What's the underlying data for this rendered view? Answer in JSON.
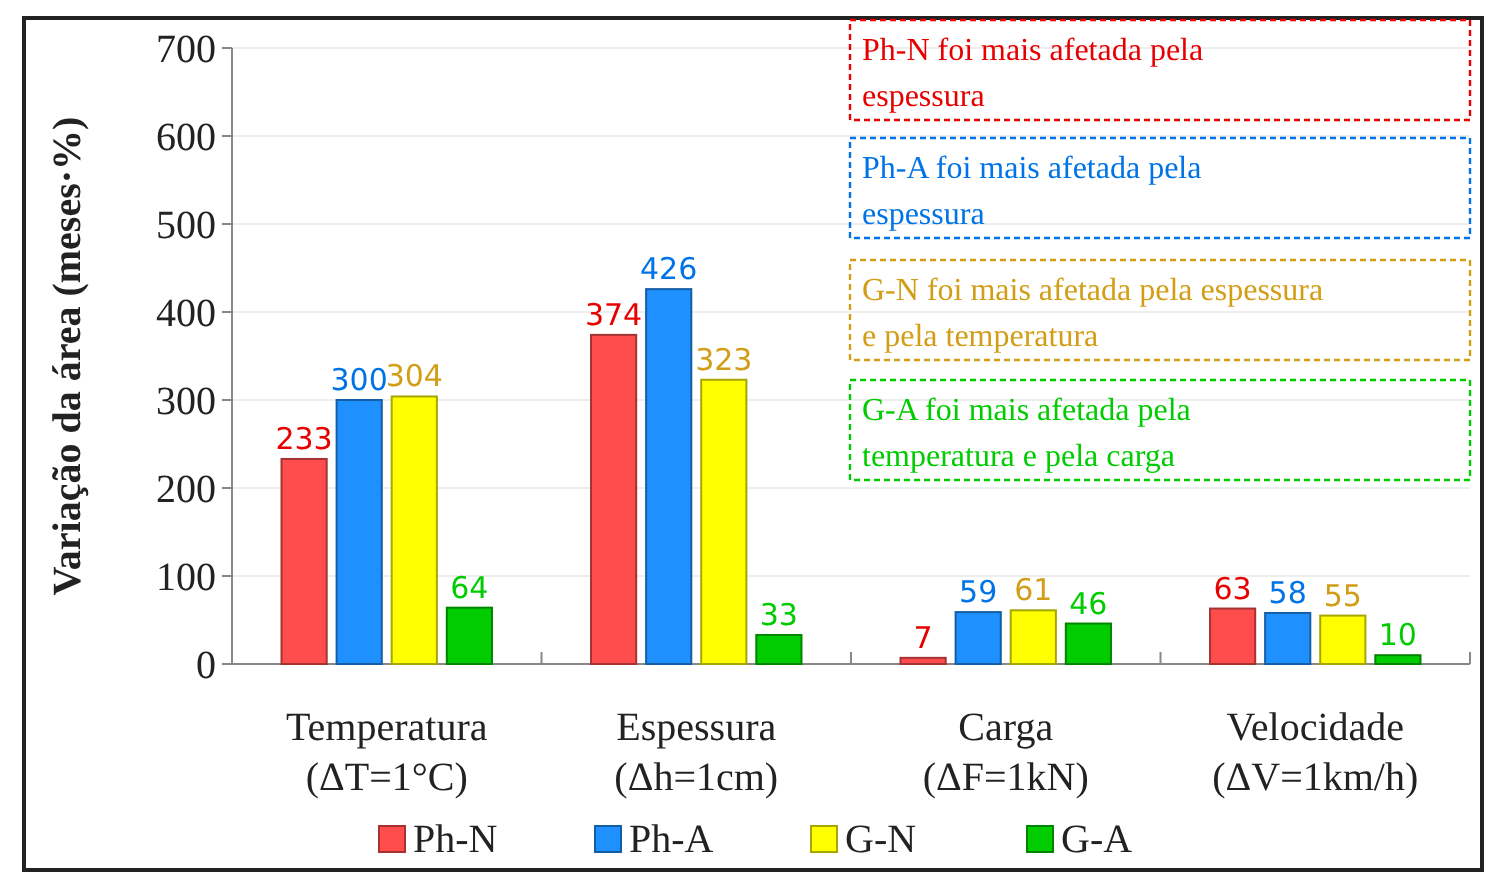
{
  "chart_data": {
    "type": "bar",
    "ylabel": "Variação da área (meses·%)",
    "categories": [
      "Temperatura\n(ΔT=1°C)",
      "Espessura\n(Δh=1cm)",
      "Carga\n(ΔF=1kN)",
      "Velocidade\n(ΔV=1km/h)"
    ],
    "series": [
      {
        "name": "Ph-N",
        "color": "#ff4d4d",
        "values": [
          233,
          374,
          7,
          63
        ]
      },
      {
        "name": "Ph-A",
        "color": "#1e90ff",
        "values": [
          300,
          426,
          59,
          58
        ]
      },
      {
        "name": "G-N",
        "color": "#ffff00",
        "values": [
          304,
          323,
          61,
          55
        ]
      },
      {
        "name": "G-A",
        "color": "#00cc00",
        "values": [
          64,
          33,
          46,
          10
        ]
      }
    ],
    "ylim": [
      0,
      700
    ],
    "yticks": [
      0,
      100,
      200,
      300,
      400,
      500,
      600,
      700
    ],
    "grid": "y",
    "legend": "bottom",
    "data_labels": true,
    "annotations": [
      "Ph-N foi mais afetada pela\nespessura",
      "Ph-A foi mais afetada pela\nespessura",
      "G-N foi mais afetada pela espessura\ne pela temperatura",
      "G-A foi mais afetada pela\ntemperatura e pela carga"
    ]
  }
}
